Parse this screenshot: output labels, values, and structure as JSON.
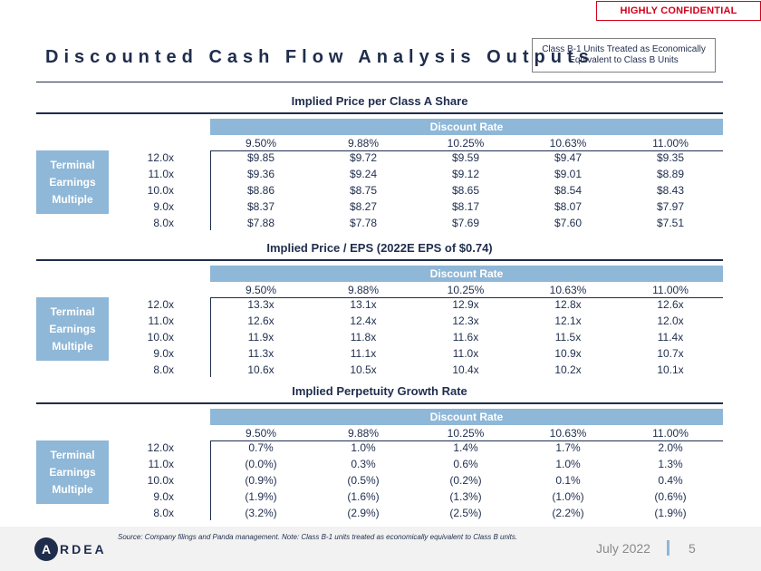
{
  "header": {
    "confidential": "HIGHLY CONFIDENTIAL",
    "title": "Discounted Cash Flow Analysis Outputs",
    "note": "Class B-1 Units Treated as Economically Equivalent to Class B Units"
  },
  "tables": [
    {
      "title": "Implied Price per Class A Share",
      "discount_label": "Discount Rate",
      "columns": [
        "9.50%",
        "9.88%",
        "10.25%",
        "10.63%",
        "11.00%"
      ],
      "side_label": [
        "Terminal",
        "Earnings",
        "Multiple"
      ],
      "rows": [
        {
          "label": "12.0x",
          "values": [
            "$9.85",
            "$9.72",
            "$9.59",
            "$9.47",
            "$9.35"
          ]
        },
        {
          "label": "11.0x",
          "values": [
            "$9.36",
            "$9.24",
            "$9.12",
            "$9.01",
            "$8.89"
          ]
        },
        {
          "label": "10.0x",
          "values": [
            "$8.86",
            "$8.75",
            "$8.65",
            "$8.54",
            "$8.43"
          ]
        },
        {
          "label": "9.0x",
          "values": [
            "$8.37",
            "$8.27",
            "$8.17",
            "$8.07",
            "$7.97"
          ]
        },
        {
          "label": "8.0x",
          "values": [
            "$7.88",
            "$7.78",
            "$7.69",
            "$7.60",
            "$7.51"
          ]
        }
      ]
    },
    {
      "title": "Implied Price / EPS (2022E EPS of $0.74)",
      "discount_label": "Discount Rate",
      "columns": [
        "9.50%",
        "9.88%",
        "10.25%",
        "10.63%",
        "11.00%"
      ],
      "side_label": [
        "Terminal",
        "Earnings",
        "Multiple"
      ],
      "rows": [
        {
          "label": "12.0x",
          "values": [
            "13.3x",
            "13.1x",
            "12.9x",
            "12.8x",
            "12.6x"
          ]
        },
        {
          "label": "11.0x",
          "values": [
            "12.6x",
            "12.4x",
            "12.3x",
            "12.1x",
            "12.0x"
          ]
        },
        {
          "label": "10.0x",
          "values": [
            "11.9x",
            "11.8x",
            "11.6x",
            "11.5x",
            "11.4x"
          ]
        },
        {
          "label": "9.0x",
          "values": [
            "11.3x",
            "11.1x",
            "11.0x",
            "10.9x",
            "10.7x"
          ]
        },
        {
          "label": "8.0x",
          "values": [
            "10.6x",
            "10.5x",
            "10.4x",
            "10.2x",
            "10.1x"
          ]
        }
      ]
    },
    {
      "title": "Implied Perpetuity Growth Rate",
      "discount_label": "Discount Rate",
      "columns": [
        "9.50%",
        "9.88%",
        "10.25%",
        "10.63%",
        "11.00%"
      ],
      "side_label": [
        "Terminal",
        "Earnings",
        "Multiple"
      ],
      "rows": [
        {
          "label": "12.0x",
          "values": [
            "0.7%",
            "1.0%",
            "1.4%",
            "1.7%",
            "2.0%"
          ]
        },
        {
          "label": "11.0x",
          "values": [
            "(0.0%)",
            "0.3%",
            "0.6%",
            "1.0%",
            "1.3%"
          ]
        },
        {
          "label": "10.0x",
          "values": [
            "(0.9%)",
            "(0.5%)",
            "(0.2%)",
            "0.1%",
            "0.4%"
          ]
        },
        {
          "label": "9.0x",
          "values": [
            "(1.9%)",
            "(1.6%)",
            "(1.3%)",
            "(1.0%)",
            "(0.6%)"
          ]
        },
        {
          "label": "8.0x",
          "values": [
            "(3.2%)",
            "(2.9%)",
            "(2.5%)",
            "(2.2%)",
            "(1.9%)"
          ]
        }
      ]
    }
  ],
  "footer": {
    "source": "Source: Company filings and Panda management. Note: Class B-1 units treated as economically equivalent to Class B units.",
    "logo_letter": "A",
    "logo_text": "RDEA",
    "date": "July 2022",
    "page": "5"
  }
}
